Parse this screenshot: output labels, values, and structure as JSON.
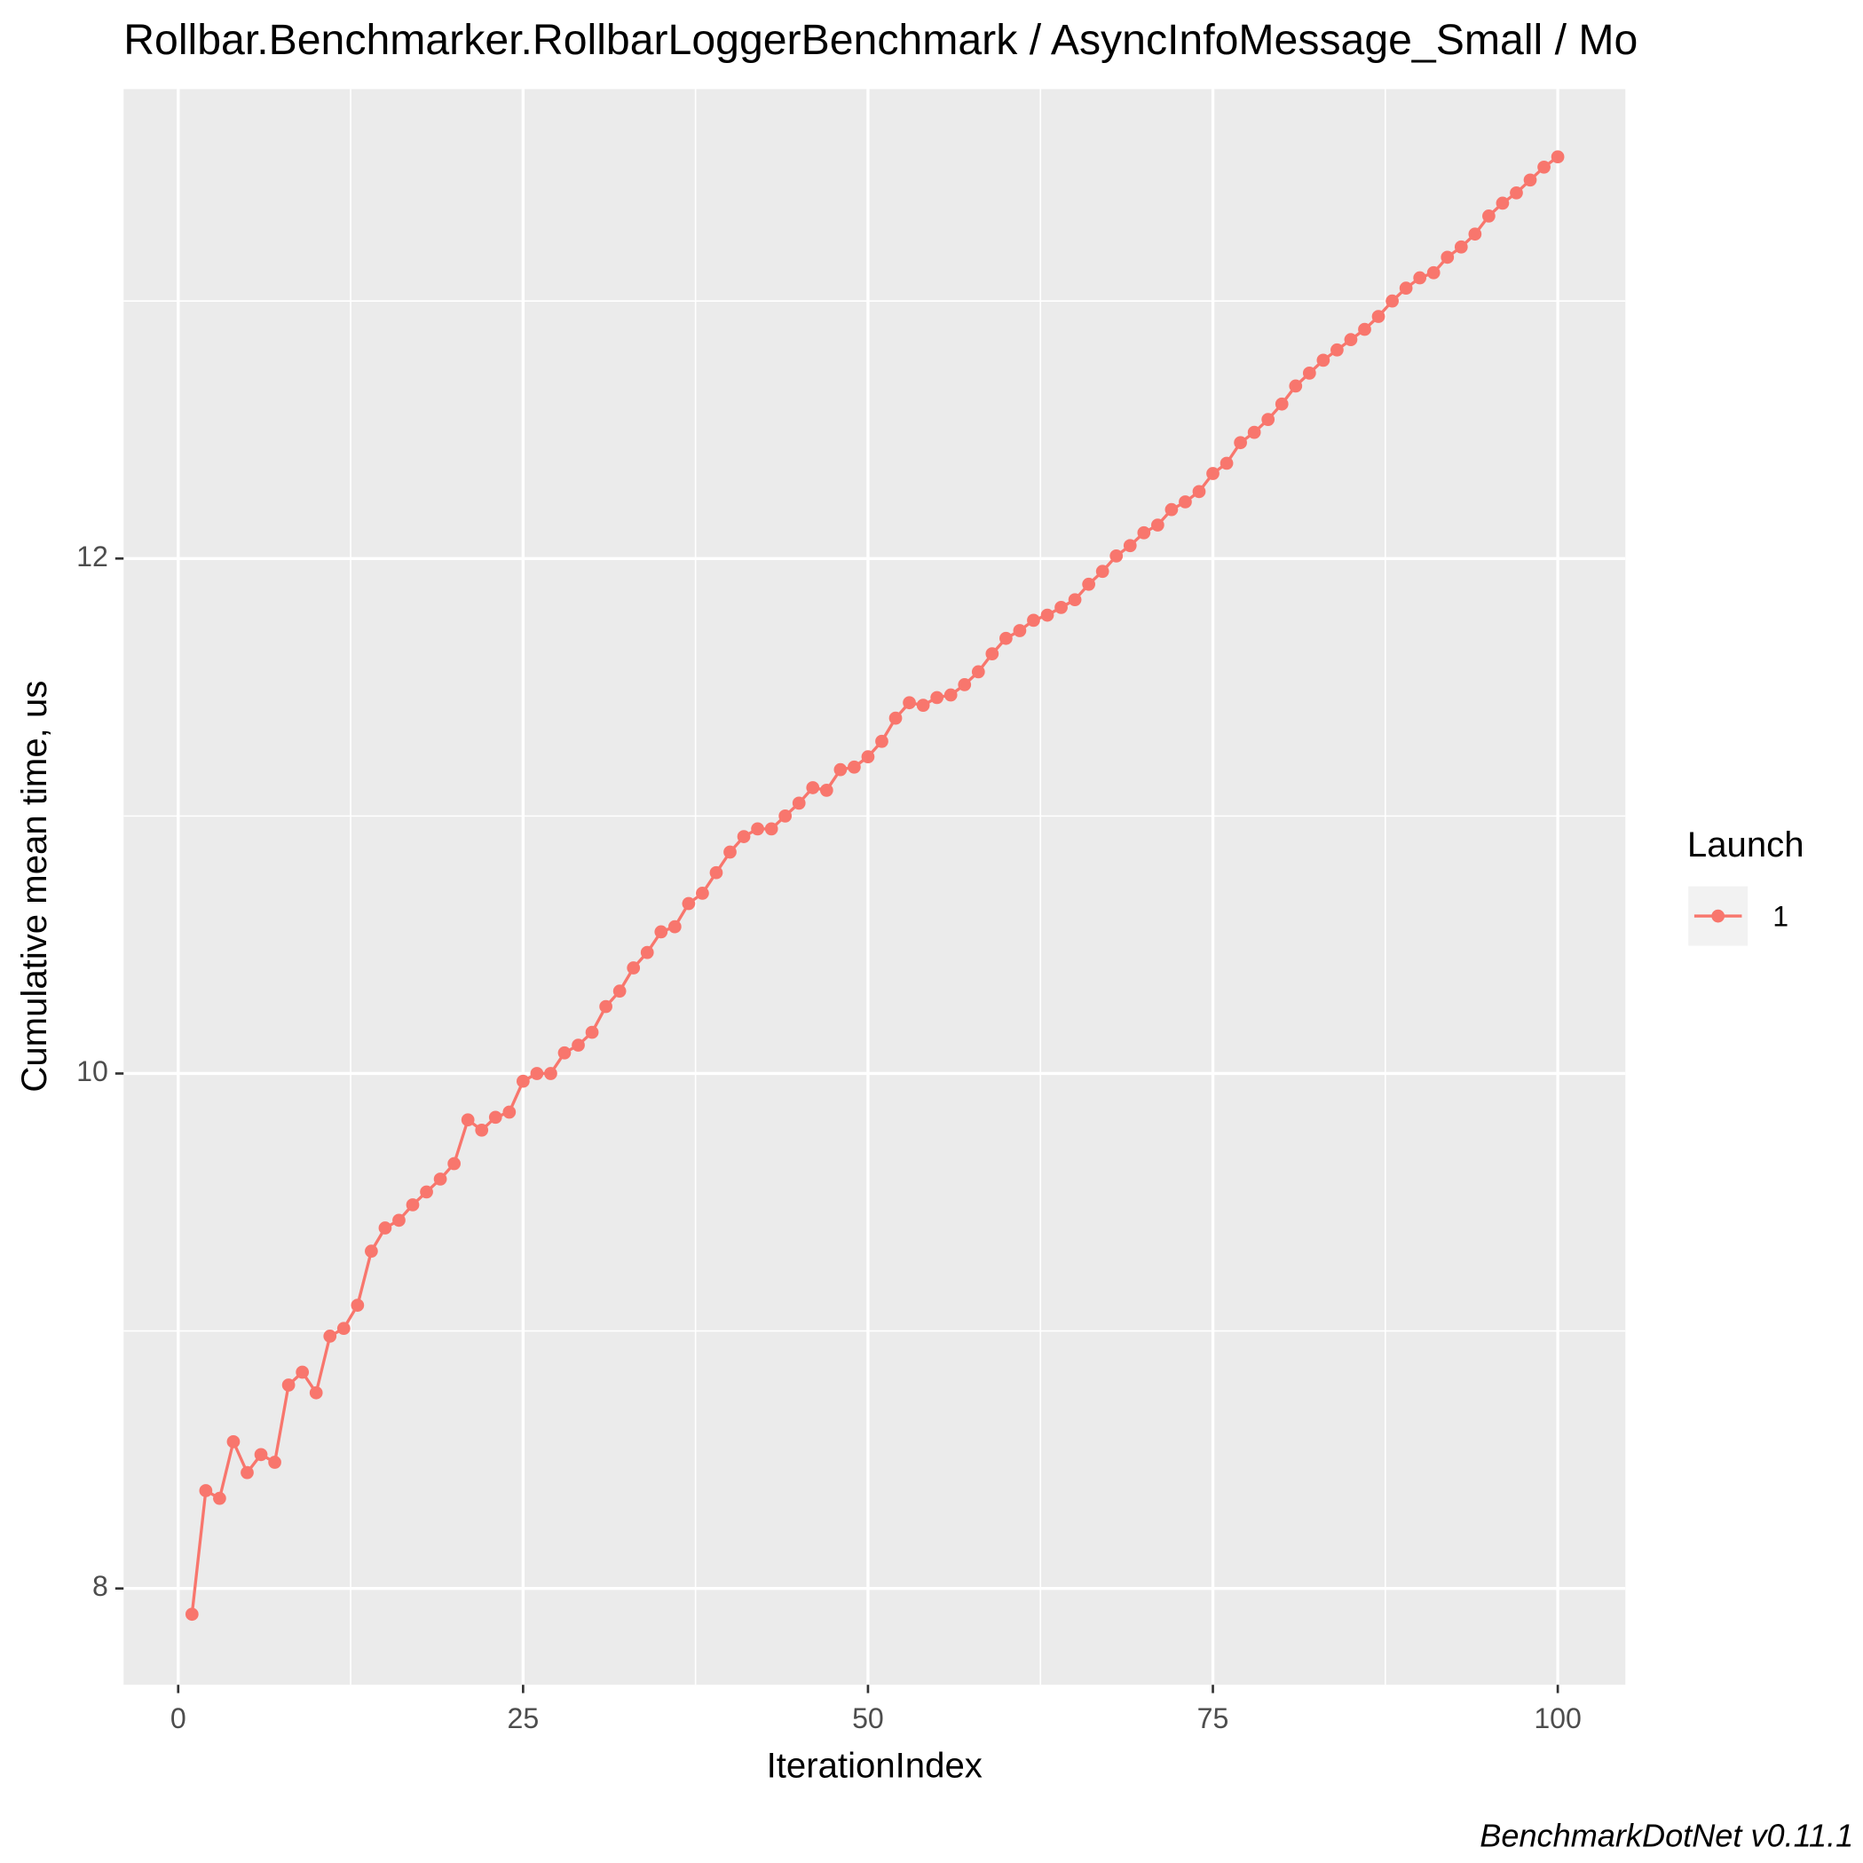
{
  "chart_data": {
    "type": "line",
    "title": "Rollbar.Benchmarker.RollbarLoggerBenchmark / AsyncInfoMessage_Small / Mo",
    "x_label": "IterationIndex",
    "y_label": "Cumulative mean time, us",
    "caption": "BenchmarkDotNet v0.11.1",
    "legend_title": "Launch",
    "legend_position": "right",
    "grid": true,
    "x": [
      1,
      2,
      3,
      4,
      5,
      6,
      7,
      8,
      9,
      10,
      11,
      12,
      13,
      14,
      15,
      16,
      17,
      18,
      19,
      20,
      21,
      22,
      23,
      24,
      25,
      26,
      27,
      28,
      29,
      30,
      31,
      32,
      33,
      34,
      35,
      36,
      37,
      38,
      39,
      40,
      41,
      42,
      43,
      44,
      45,
      46,
      47,
      48,
      49,
      50,
      51,
      52,
      53,
      54,
      55,
      56,
      57,
      58,
      59,
      60,
      61,
      62,
      63,
      64,
      65,
      66,
      67,
      68,
      69,
      70,
      71,
      72,
      73,
      74,
      75,
      76,
      77,
      78,
      79,
      80,
      81,
      82,
      83,
      84,
      85,
      86,
      87,
      88,
      89,
      90,
      91,
      92,
      93,
      94,
      95,
      96,
      97,
      98,
      99,
      100
    ],
    "series": [
      {
        "name": "1",
        "color": "#F8766D",
        "values": [
          7.9,
          8.38,
          8.35,
          8.57,
          8.45,
          8.52,
          8.49,
          8.79,
          8.84,
          8.76,
          8.98,
          9.01,
          9.1,
          9.31,
          9.4,
          9.43,
          9.49,
          9.54,
          9.59,
          9.65,
          9.82,
          9.78,
          9.83,
          9.85,
          9.97,
          10.0,
          10.0,
          10.08,
          10.11,
          10.16,
          10.26,
          10.32,
          10.41,
          10.47,
          10.55,
          10.57,
          10.66,
          10.7,
          10.78,
          10.86,
          10.92,
          10.95,
          10.95,
          11.0,
          11.05,
          11.11,
          11.1,
          11.18,
          11.19,
          11.23,
          11.29,
          11.38,
          11.44,
          11.43,
          11.46,
          11.47,
          11.51,
          11.56,
          11.63,
          11.69,
          11.72,
          11.76,
          11.78,
          11.81,
          11.84,
          11.9,
          11.95,
          12.01,
          12.05,
          12.1,
          12.13,
          12.19,
          12.22,
          12.26,
          12.33,
          12.37,
          12.45,
          12.49,
          12.54,
          12.6,
          12.67,
          12.72,
          12.77,
          12.81,
          12.85,
          12.89,
          12.94,
          13.0,
          13.05,
          13.09,
          13.11,
          13.17,
          13.21,
          13.26,
          13.33,
          13.38,
          13.42,
          13.47,
          13.52,
          13.56
        ]
      }
    ],
    "xlim": [
      -3.96,
      104.9
    ],
    "ylim": [
      7.626,
      13.823
    ],
    "xticks": [
      0,
      25,
      50,
      75,
      100
    ],
    "yticks": [
      8,
      10,
      12
    ]
  }
}
